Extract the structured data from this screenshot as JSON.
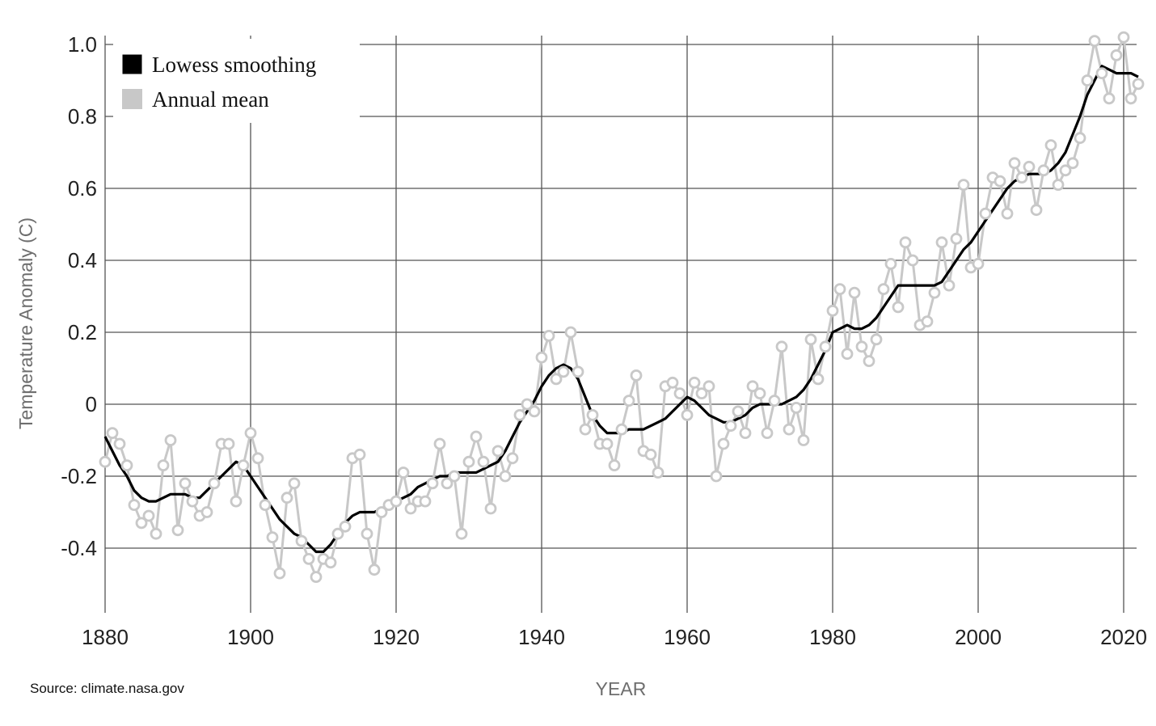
{
  "source_note": "Source: climate.nasa.gov",
  "colors": {
    "grid": "#555555",
    "smoothing": "#000000",
    "annual": "#c8c8c8",
    "marker_fill": "#ffffff"
  },
  "chart_data": {
    "type": "line",
    "xlabel": "YEAR",
    "ylabel": "Temperature Anomaly (C)",
    "xlim": [
      1880,
      2022
    ],
    "ylim": [
      -0.57,
      1.03
    ],
    "grid": true,
    "legend_position": "top-left",
    "x_ticks": [
      1880,
      1900,
      1920,
      1940,
      1960,
      1980,
      2000,
      2020
    ],
    "x_tick_labels": [
      "1880",
      "1900",
      "1920",
      "1940",
      "1960",
      "1980",
      "2000",
      "2020"
    ],
    "y_ticks": [
      -0.4,
      -0.2,
      0,
      0.2,
      0.4,
      0.6,
      0.8,
      1.0
    ],
    "y_tick_labels": [
      "-0.4",
      "-0.2",
      "0",
      "0.2",
      "0.4",
      "0.6",
      "0.8",
      "1.0"
    ],
    "x": [
      1880,
      1881,
      1882,
      1883,
      1884,
      1885,
      1886,
      1887,
      1888,
      1889,
      1890,
      1891,
      1892,
      1893,
      1894,
      1895,
      1896,
      1897,
      1898,
      1899,
      1900,
      1901,
      1902,
      1903,
      1904,
      1905,
      1906,
      1907,
      1908,
      1909,
      1910,
      1911,
      1912,
      1913,
      1914,
      1915,
      1916,
      1917,
      1918,
      1919,
      1920,
      1921,
      1922,
      1923,
      1924,
      1925,
      1926,
      1927,
      1928,
      1929,
      1930,
      1931,
      1932,
      1933,
      1934,
      1935,
      1936,
      1937,
      1938,
      1939,
      1940,
      1941,
      1942,
      1943,
      1944,
      1945,
      1946,
      1947,
      1948,
      1949,
      1950,
      1951,
      1952,
      1953,
      1954,
      1955,
      1956,
      1957,
      1958,
      1959,
      1960,
      1961,
      1962,
      1963,
      1964,
      1965,
      1966,
      1967,
      1968,
      1969,
      1970,
      1971,
      1972,
      1973,
      1974,
      1975,
      1976,
      1977,
      1978,
      1979,
      1980,
      1981,
      1982,
      1983,
      1984,
      1985,
      1986,
      1987,
      1988,
      1989,
      1990,
      1991,
      1992,
      1993,
      1994,
      1995,
      1996,
      1997,
      1998,
      1999,
      2000,
      2001,
      2002,
      2003,
      2004,
      2005,
      2006,
      2007,
      2008,
      2009,
      2010,
      2011,
      2012,
      2013,
      2014,
      2015,
      2016,
      2017,
      2018,
      2019,
      2020,
      2021,
      2022
    ],
    "series": [
      {
        "name": "Annual mean",
        "values": [
          -0.16,
          -0.08,
          -0.11,
          -0.17,
          -0.28,
          -0.33,
          -0.31,
          -0.36,
          -0.17,
          -0.1,
          -0.35,
          -0.22,
          -0.27,
          -0.31,
          -0.3,
          -0.22,
          -0.11,
          -0.11,
          -0.27,
          -0.17,
          -0.08,
          -0.15,
          -0.28,
          -0.37,
          -0.47,
          -0.26,
          -0.22,
          -0.38,
          -0.43,
          -0.48,
          -0.43,
          -0.44,
          -0.36,
          -0.34,
          -0.15,
          -0.14,
          -0.36,
          -0.46,
          -0.3,
          -0.28,
          -0.27,
          -0.19,
          -0.29,
          -0.27,
          -0.27,
          -0.22,
          -0.11,
          -0.22,
          -0.2,
          -0.36,
          -0.16,
          -0.09,
          -0.16,
          -0.29,
          -0.13,
          -0.2,
          -0.15,
          -0.03,
          0.0,
          -0.02,
          0.13,
          0.19,
          0.07,
          0.09,
          0.2,
          0.09,
          -0.07,
          -0.03,
          -0.11,
          -0.11,
          -0.17,
          -0.07,
          0.01,
          0.08,
          -0.13,
          -0.14,
          -0.19,
          0.05,
          0.06,
          0.03,
          -0.03,
          0.06,
          0.03,
          0.05,
          -0.2,
          -0.11,
          -0.06,
          -0.02,
          -0.08,
          0.05,
          0.03,
          -0.08,
          0.01,
          0.16,
          -0.07,
          -0.01,
          -0.1,
          0.18,
          0.07,
          0.16,
          0.26,
          0.32,
          0.14,
          0.31,
          0.16,
          0.12,
          0.18,
          0.32,
          0.39,
          0.27,
          0.45,
          0.4,
          0.22,
          0.23,
          0.31,
          0.45,
          0.33,
          0.46,
          0.61,
          0.38,
          0.39,
          0.53,
          0.63,
          0.62,
          0.53,
          0.67,
          0.63,
          0.66,
          0.54,
          0.65,
          0.72,
          0.61,
          0.65,
          0.67,
          0.74,
          0.9,
          1.01,
          0.92,
          0.85,
          0.97,
          1.02,
          0.85,
          0.89
        ]
      },
      {
        "name": "Lowess smoothing",
        "values": [
          -0.09,
          -0.13,
          -0.17,
          -0.2,
          -0.24,
          -0.26,
          -0.27,
          -0.27,
          -0.26,
          -0.25,
          -0.25,
          -0.25,
          -0.26,
          -0.26,
          -0.24,
          -0.22,
          -0.2,
          -0.18,
          -0.16,
          -0.17,
          -0.2,
          -0.23,
          -0.26,
          -0.29,
          -0.32,
          -0.34,
          -0.36,
          -0.37,
          -0.39,
          -0.41,
          -0.41,
          -0.39,
          -0.36,
          -0.33,
          -0.31,
          -0.3,
          -0.3,
          -0.3,
          -0.29,
          -0.28,
          -0.27,
          -0.26,
          -0.25,
          -0.23,
          -0.22,
          -0.21,
          -0.2,
          -0.2,
          -0.19,
          -0.19,
          -0.19,
          -0.19,
          -0.18,
          -0.17,
          -0.16,
          -0.13,
          -0.09,
          -0.05,
          -0.02,
          0.01,
          0.05,
          0.08,
          0.1,
          0.11,
          0.1,
          0.07,
          0.02,
          -0.03,
          -0.06,
          -0.08,
          -0.08,
          -0.08,
          -0.07,
          -0.07,
          -0.07,
          -0.06,
          -0.05,
          -0.04,
          -0.02,
          0.0,
          0.02,
          0.01,
          -0.01,
          -0.03,
          -0.04,
          -0.05,
          -0.05,
          -0.04,
          -0.03,
          -0.01,
          0.0,
          0.0,
          0.0,
          0.0,
          0.01,
          0.02,
          0.04,
          0.07,
          0.11,
          0.15,
          0.2,
          0.21,
          0.22,
          0.21,
          0.21,
          0.22,
          0.24,
          0.27,
          0.3,
          0.33,
          0.33,
          0.33,
          0.33,
          0.33,
          0.33,
          0.34,
          0.37,
          0.4,
          0.43,
          0.45,
          0.48,
          0.51,
          0.54,
          0.57,
          0.6,
          0.62,
          0.63,
          0.64,
          0.64,
          0.64,
          0.65,
          0.67,
          0.7,
          0.75,
          0.8,
          0.86,
          0.9,
          0.94,
          0.93,
          0.92,
          0.92,
          0.92,
          0.91
        ]
      }
    ]
  }
}
